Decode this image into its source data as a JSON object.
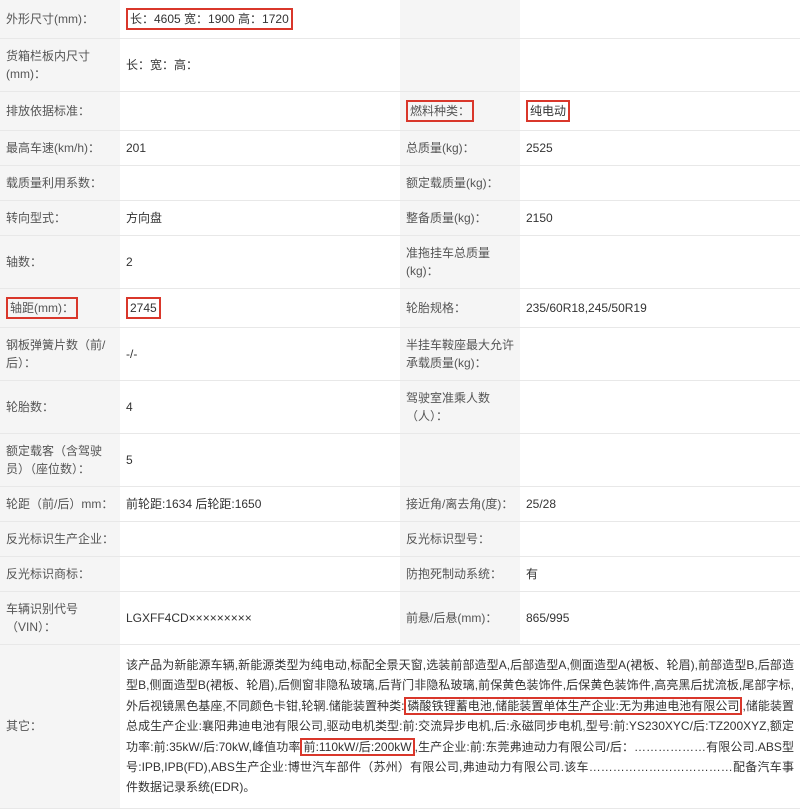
{
  "rows": [
    {
      "type": "pair",
      "l1": "外形尺寸(mm)：",
      "v1_pre": "",
      "v1_hl": "长：4605 宽：1900 高：1720",
      "v1_post": "",
      "l2": "",
      "v2": ""
    },
    {
      "type": "pair",
      "l1": "货箱栏板内尺寸(mm)：",
      "v1": "长：宽：高：",
      "l2": "",
      "v2": ""
    },
    {
      "type": "pair",
      "l1": "排放依据标准：",
      "v1": "",
      "l2_hl": "燃料种类：",
      "v2_hl": "纯电动"
    },
    {
      "type": "pair",
      "l1": "最高车速(km/h)：",
      "v1": "201",
      "l2": "总质量(kg)：",
      "v2": "2525"
    },
    {
      "type": "pair",
      "l1": "载质量利用系数：",
      "v1": "",
      "l2": "额定载质量(kg)：",
      "v2": ""
    },
    {
      "type": "pair",
      "l1": "转向型式：",
      "v1": "方向盘",
      "l2": "整备质量(kg)：",
      "v2": "2150"
    },
    {
      "type": "pair",
      "l1": "轴数：",
      "v1": "2",
      "l2": "准拖挂车总质量(kg)：",
      "v2": ""
    },
    {
      "type": "pair",
      "l1_hl": "轴距(mm)：",
      "v1_hl_only": "2745",
      "l2": "轮胎规格：",
      "v2": "235/60R18,245/50R19"
    },
    {
      "type": "pair",
      "l1": "钢板弹簧片数（前/后）：",
      "v1": "-/-",
      "l2": "半挂车鞍座最大允许承载质量(kg)：",
      "v2": ""
    },
    {
      "type": "pair",
      "l1": "轮胎数：",
      "v1": "4",
      "l2": "驾驶室准乘人数（人）：",
      "v2": ""
    },
    {
      "type": "pair",
      "l1": "额定载客（含驾驶员）（座位数）：",
      "v1": "5",
      "l2": "",
      "v2": ""
    },
    {
      "type": "pair",
      "l1": "轮距（前/后）mm：",
      "v1": "前轮距:1634 后轮距:1650",
      "l2": "接近角/离去角(度)：",
      "v2": "25/28"
    },
    {
      "type": "pair",
      "l1": "反光标识生产企业：",
      "v1": "",
      "l2": "反光标识型号：",
      "v2": ""
    },
    {
      "type": "pair",
      "l1": "反光标识商标：",
      "v1": "",
      "l2": "防抱死制动系统：",
      "v2": "有"
    },
    {
      "type": "pair",
      "l1": "车辆识别代号（VIN）：",
      "v1": "LGXFF4CD×××××××××",
      "l2": "前悬/后悬(mm)：",
      "v2": "865/995"
    }
  ],
  "desc": {
    "label": "其它：",
    "seg1": "该产品为新能源车辆,新能源类型为纯电动,标配全景天窗,选装前部造型A,后部造型A,侧面造型A(裙板、轮眉),前部造型B,后部造型B,侧面造型B(裙板、轮眉),后侧窗非隐私玻璃,后背门非隐私玻璃,前保黄色装饰件,后保黄色装饰件,高亮黑后扰流板,尾部字标,外后视镜黑色基座,不同颜色卡钳,轮辋.储能装置种类:",
    "hl1": "磷酸铁锂蓄电池,储能装置单体生产企业:无为弗迪电池有限公司",
    "seg2": ",储能装置总成生产企业:襄阳弗迪电池有限公司,驱动电机类型:前:交流异步电机,后:永磁同步电机,型号:前:YS230XYC/后:TZ200XYZ,额定功率:前:35kW/后:70kW,峰值功率",
    "hl2": "前:110kW/后:200kW",
    "seg3": ",生产企业:前:东莞弗迪动力有限公司/后：………………有限公司.ABS型号:IPB,IPB(FD),ABS生产企业:博世汽车部件（苏州）有限公司,弗迪动力有限公司.该车………………………………配备汽车事件数据记录系统(EDR)。"
  },
  "colors": {
    "highlight_border": "#d9372b",
    "label_bg": "#f5f5f5",
    "border": "#e8e8e8",
    "text": "#333333"
  }
}
